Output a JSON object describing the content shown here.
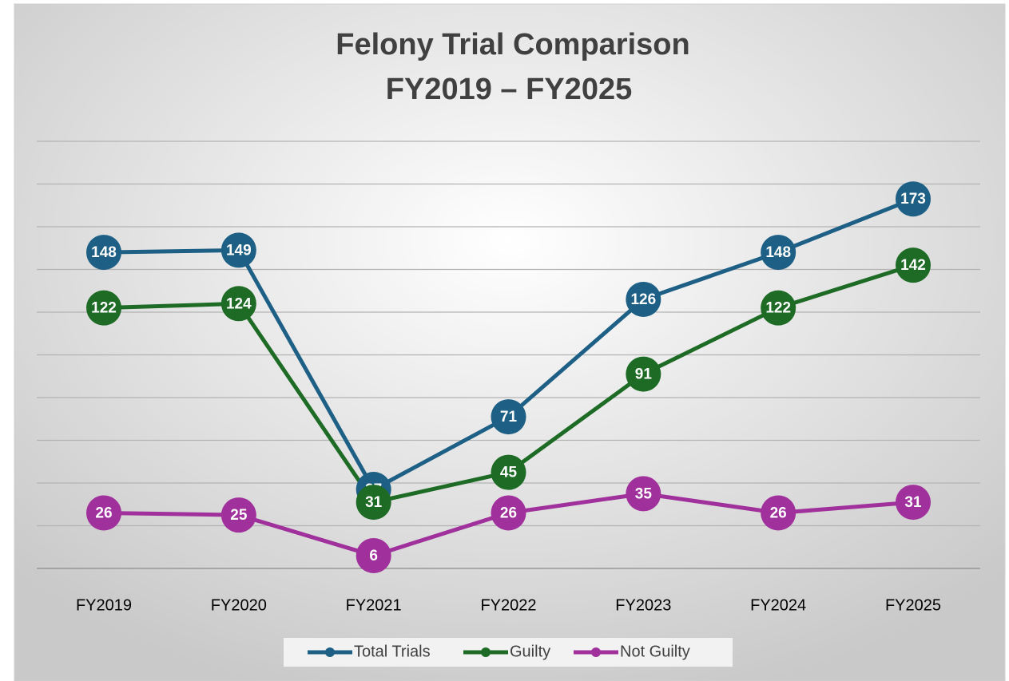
{
  "chart_data": {
    "type": "line",
    "title": [
      "Felony Trial Comparison",
      "FY2019 – FY2025"
    ],
    "categories": [
      "FY2019",
      "FY2020",
      "FY2021",
      "FY2022",
      "FY2023",
      "FY2024",
      "FY2025"
    ],
    "series": [
      {
        "name": "Total Trials",
        "color": "#1d5f85",
        "values": [
          148,
          149,
          37,
          71,
          126,
          148,
          173
        ]
      },
      {
        "name": "Guilty",
        "color": "#1d6b25",
        "values": [
          122,
          124,
          31,
          45,
          91,
          122,
          142
        ]
      },
      {
        "name": "Not Guilty",
        "color": "#a0309b",
        "values": [
          26,
          25,
          6,
          26,
          35,
          26,
          31
        ]
      }
    ],
    "ylim": [
      0,
      200
    ],
    "yticks": [
      0,
      20,
      40,
      60,
      80,
      100,
      120,
      140,
      160,
      180,
      200
    ],
    "grid": true,
    "legend": "bottom",
    "data_labels": true
  }
}
